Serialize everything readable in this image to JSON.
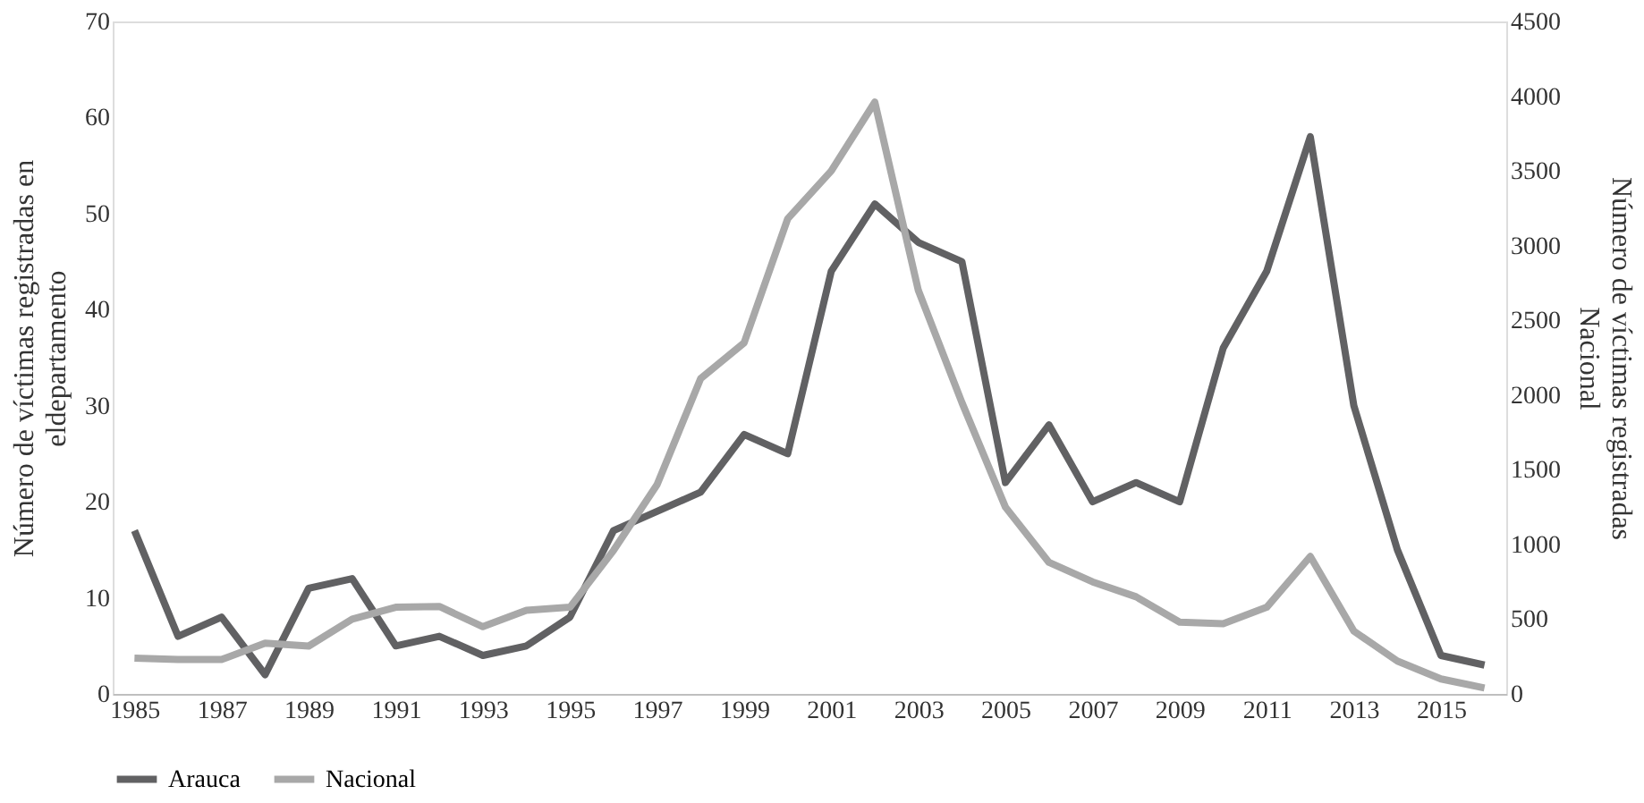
{
  "chart_data": {
    "type": "line",
    "ylabel": "Número de víctimas registradas en\neldepartamento",
    "y2label": "Número de víctimas registradas\nNacional",
    "categories": [
      "1985",
      null,
      "1987",
      null,
      "1989",
      null,
      "1991",
      null,
      "1993",
      null,
      "1995",
      null,
      "1997",
      null,
      "1999",
      null,
      "2001",
      null,
      "2003",
      null,
      "2005",
      null,
      "2007",
      null,
      "2009",
      null,
      "2011",
      null,
      "2013",
      null,
      "2015",
      null
    ],
    "series": [
      {
        "name": "Arauca",
        "color": "#616163",
        "values": [
          17,
          6,
          8,
          2,
          11,
          12,
          5,
          6,
          4,
          5,
          8,
          17,
          19,
          21,
          27,
          25,
          44,
          51,
          47,
          45,
          22,
          28,
          20,
          22,
          20,
          36,
          44,
          58,
          30,
          15,
          4,
          3
        ]
      },
      {
        "name": "Nacional",
        "color": "#a8a8a8",
        "axis": "y2",
        "values": [
          240,
          230,
          230,
          340,
          320,
          500,
          580,
          585,
          450,
          560,
          580,
          960,
          1400,
          2110,
          2350,
          3180,
          3500,
          3960,
          2700,
          1950,
          1250,
          880,
          750,
          650,
          480,
          470,
          580,
          920,
          420,
          220,
          100,
          40
        ]
      }
    ],
    "ylim": [
      0,
      70
    ],
    "yticks": [
      0,
      10,
      20,
      30,
      40,
      50,
      60,
      70
    ],
    "y2lim": [
      0,
      4500
    ],
    "y2ticks": [
      0,
      500,
      1000,
      1500,
      2000,
      2500,
      3000,
      3500,
      4000,
      4500
    ],
    "grid": false,
    "legend": "bottom",
    "marker": "none",
    "line_style": "solid"
  }
}
